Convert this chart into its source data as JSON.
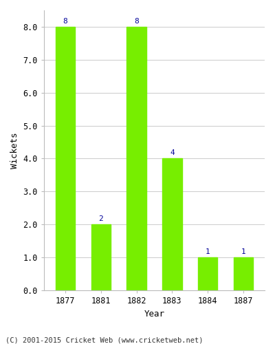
{
  "categories": [
    "1877",
    "1881",
    "1882",
    "1883",
    "1884",
    "1887"
  ],
  "values": [
    8,
    2,
    8,
    4,
    1,
    1
  ],
  "bar_color": "#77EE00",
  "ylabel": "Wickets",
  "xlabel": "Year",
  "ylim": [
    0.0,
    8.5
  ],
  "yticks": [
    0.0,
    1.0,
    2.0,
    3.0,
    4.0,
    5.0,
    6.0,
    7.0,
    8.0
  ],
  "label_color": "#000099",
  "label_fontsize": 8,
  "xlabel_fontsize": 9,
  "ylabel_fontsize": 9,
  "tick_fontsize": 8.5,
  "footer_text": "(C) 2001-2015 Cricket Web (www.cricketweb.net)",
  "footer_fontsize": 7.5,
  "background_color": "#ffffff",
  "plot_bg_color": "#ffffff",
  "grid_color": "#d0d0d0",
  "bar_width": 0.55
}
